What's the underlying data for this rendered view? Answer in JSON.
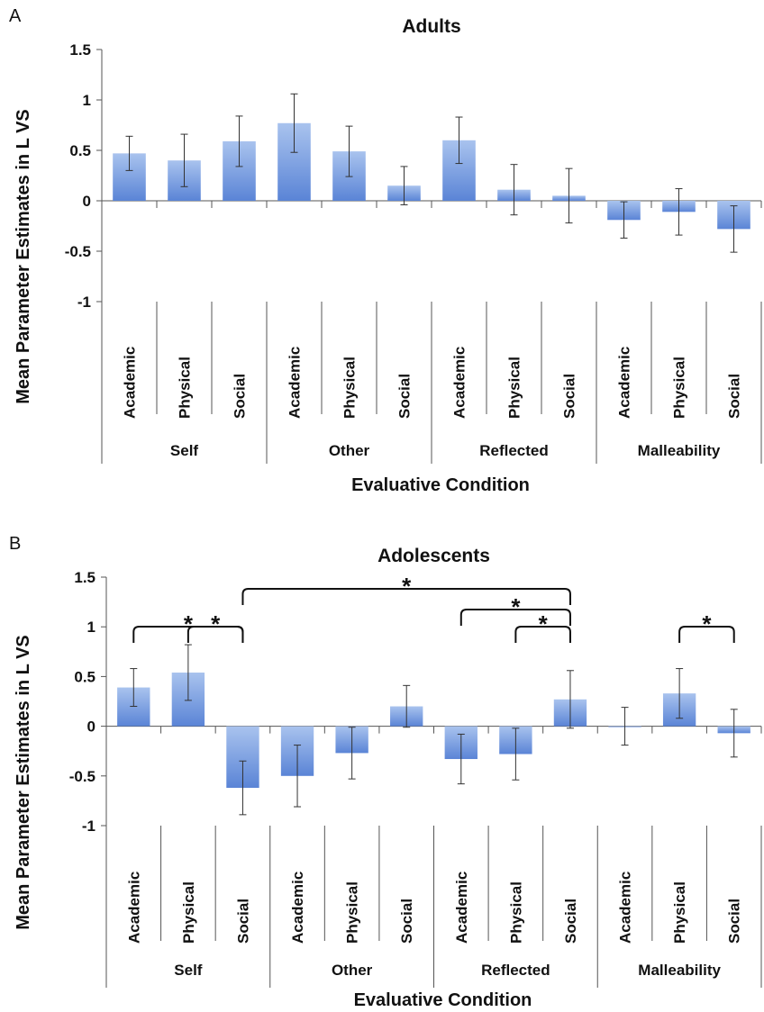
{
  "chart_data": [
    {
      "panel": "A",
      "type": "bar",
      "title": "Adults",
      "ylabel": "Mean Parameter Estimates in L VS",
      "xlabel": "Evaluative Condition",
      "ylim": [
        -1,
        1.5
      ],
      "yticks": [
        "1.5",
        "1",
        "0.5",
        "0",
        "-0.5",
        "-1"
      ],
      "categories": [
        "Academic",
        "Physical",
        "Social",
        "Academic",
        "Physical",
        "Social",
        "Academic",
        "Physical",
        "Social",
        "Academic",
        "Physical",
        "Social"
      ],
      "groups": [
        "Self",
        "Other",
        "Reflected",
        "Malleability"
      ],
      "values": [
        0.47,
        0.4,
        0.59,
        0.77,
        0.49,
        0.15,
        0.6,
        0.11,
        0.05,
        -0.19,
        -0.11,
        -0.28
      ],
      "errors": [
        0.17,
        0.26,
        0.25,
        0.29,
        0.25,
        0.19,
        0.23,
        0.25,
        0.27,
        0.18,
        0.23,
        0.23
      ],
      "significance": []
    },
    {
      "panel": "B",
      "type": "bar",
      "title": "Adolescents",
      "ylabel": "Mean Parameter Estimates in L VS",
      "xlabel": "Evaluative Condition",
      "ylim": [
        -1,
        1.5
      ],
      "yticks": [
        "1.5",
        "1",
        "0.5",
        "0",
        "-0.5",
        "-1"
      ],
      "categories": [
        "Academic",
        "Physical",
        "Social",
        "Academic",
        "Physical",
        "Social",
        "Academic",
        "Physical",
        "Social",
        "Academic",
        "Physical",
        "Social"
      ],
      "groups": [
        "Self",
        "Other",
        "Reflected",
        "Malleability"
      ],
      "values": [
        0.39,
        0.54,
        -0.62,
        -0.5,
        -0.27,
        0.2,
        -0.33,
        -0.28,
        0.27,
        0.0,
        0.33,
        -0.07
      ],
      "errors": [
        0.19,
        0.28,
        0.27,
        0.31,
        0.26,
        0.21,
        0.25,
        0.26,
        0.29,
        0.19,
        0.25,
        0.24
      ],
      "significance": [
        {
          "from": 0,
          "to": 2,
          "label": "*"
        },
        {
          "from": 1,
          "to": 2,
          "label": "*"
        },
        {
          "from": 2,
          "to": 8,
          "label": "*"
        },
        {
          "from": 6,
          "to": 8,
          "label": "*"
        },
        {
          "from": 7,
          "to": 8,
          "label": "*"
        },
        {
          "from": 10,
          "to": 11,
          "label": "*"
        }
      ]
    }
  ]
}
